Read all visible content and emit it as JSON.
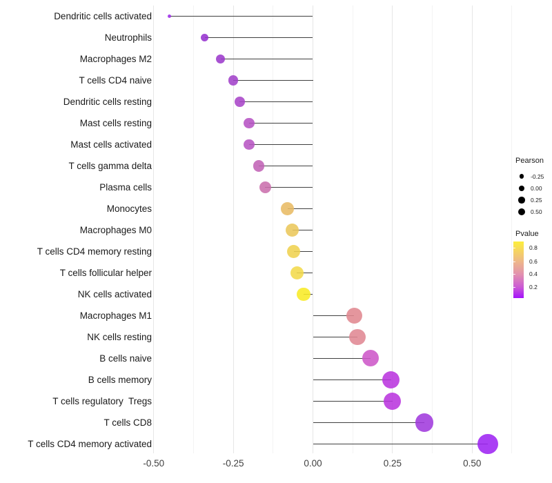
{
  "chart_data": {
    "type": "lollipop",
    "orientation": "horizontal",
    "title": "",
    "xlabel": "",
    "ylabel": "",
    "categories": [
      "Dendritic cells activated",
      "Neutrophils",
      "Macrophages M2",
      "T cells CD4 naive",
      "Dendritic cells resting",
      "Mast cells resting",
      "Mast cells activated",
      "T cells gamma delta",
      "Plasma cells",
      "Monocytes",
      "Macrophages M0",
      "T cells CD4 memory resting",
      "T cells follicular helper",
      "NK cells activated",
      "Macrophages M1",
      "NK cells resting",
      "B cells naive",
      "B cells memory",
      "T cells regulatory  Tregs",
      "T cells CD8",
      "T cells CD4 memory activated"
    ],
    "values": [
      -0.45,
      -0.34,
      -0.29,
      -0.25,
      -0.23,
      -0.2,
      -0.2,
      -0.17,
      -0.15,
      -0.08,
      -0.065,
      -0.06,
      -0.05,
      -0.03,
      0.13,
      0.14,
      0.18,
      0.245,
      0.25,
      0.35,
      0.55
    ],
    "point_colors": [
      "#9d2ce8",
      "#9632cf",
      "#9c3acc",
      "#a242ca",
      "#a846c8",
      "#b653c4",
      "#b755c3",
      "#c263b6",
      "#cb70ad",
      "#e8bb64",
      "#ebc75b",
      "#efd150",
      "#f2da4b",
      "#f8eb25",
      "#e0888f",
      "#e08893",
      "#cd58c8",
      "#ba36de",
      "#b936de",
      "#a03add",
      "#9e24f2"
    ],
    "x_ticks": [
      {
        "label": "-0.50",
        "value": -0.5
      },
      {
        "label": "-0.25",
        "value": -0.25
      },
      {
        "label": "0.00",
        "value": 0.0
      },
      {
        "label": "0.25",
        "value": 0.25
      },
      {
        "label": "0.50",
        "value": 0.5
      }
    ],
    "x_minor": [
      -0.375,
      -0.125,
      0.125,
      0.375,
      0.625
    ],
    "xlim": [
      -0.508,
      0.627
    ],
    "grid": true,
    "legend_position": "right",
    "stem_color": "#3f3f3f",
    "grid_major_color": "#e6e6e6",
    "grid_minor_color": "#f3f3f3",
    "background_color": "#ffffff",
    "size_legend": {
      "title": "Pearson",
      "items": [
        {
          "label": "-0.25",
          "value": -0.25
        },
        {
          "label": "0.00",
          "value": 0.0
        },
        {
          "label": "0.25",
          "value": 0.25
        },
        {
          "label": "0.50",
          "value": 0.5
        }
      ]
    },
    "color_legend": {
      "title": "Pvalue",
      "ticks": [
        {
          "label": "0.8",
          "t": 0.11
        },
        {
          "label": "0.6",
          "t": 0.348
        },
        {
          "label": "0.4",
          "t": 0.579
        },
        {
          "label": "0.2",
          "t": 0.81
        }
      ],
      "gradient": [
        {
          "color": "#fcee3c",
          "pos": 0
        },
        {
          "color": "#f8dd55",
          "pos": 0.11
        },
        {
          "color": "#eeb888",
          "pos": 0.35
        },
        {
          "color": "#e291af",
          "pos": 0.58
        },
        {
          "color": "#cb59d5",
          "pos": 0.81
        },
        {
          "color": "#a312fc",
          "pos": 1
        }
      ]
    }
  }
}
